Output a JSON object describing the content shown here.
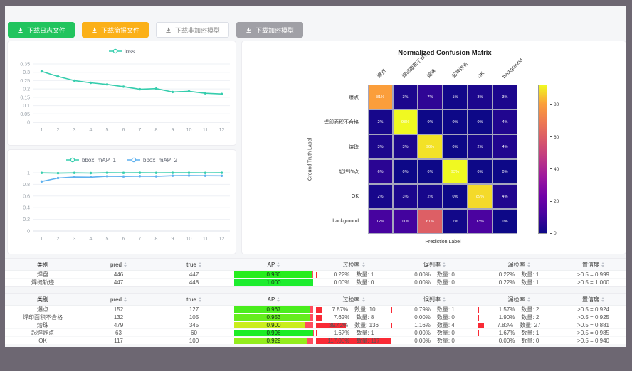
{
  "toolbar": {
    "buttons": [
      {
        "label": "下载日志文件",
        "color": "#21c45e"
      },
      {
        "label": "下载简报文件",
        "color": "#fbb018"
      },
      {
        "label": "下载非加密模型",
        "color": "#ffffff"
      },
      {
        "label": "下载加密模型",
        "color": "#a0a0a6"
      }
    ]
  },
  "chart_data": [
    {
      "type": "line",
      "title": "loss",
      "x": [
        1,
        2,
        3,
        4,
        5,
        6,
        7,
        8,
        9,
        10,
        11,
        12
      ],
      "xlabel": "",
      "ylabel": "",
      "ylim": [
        0,
        0.35
      ],
      "yticks": [
        0,
        0.05,
        0.1,
        0.15,
        0.2,
        0.25,
        0.3,
        0.35
      ],
      "grid": true,
      "legend_position": "top",
      "series": [
        {
          "name": "loss",
          "color": "#35cdad",
          "values": [
            0.305,
            0.275,
            0.25,
            0.237,
            0.227,
            0.214,
            0.198,
            0.202,
            0.182,
            0.186,
            0.174,
            0.17
          ]
        }
      ]
    },
    {
      "type": "line",
      "title": "bbox_mAP",
      "x": [
        1,
        2,
        3,
        4,
        5,
        6,
        7,
        8,
        9,
        10,
        11,
        12
      ],
      "xlabel": "",
      "ylabel": "",
      "ylim": [
        0,
        1
      ],
      "yticks": [
        0,
        0.2,
        0.4,
        0.6,
        0.8,
        1
      ],
      "grid": true,
      "legend_position": "top",
      "series": [
        {
          "name": "bbox_mAP_1",
          "color": "#35cdad",
          "values": [
            0.998,
            0.993,
            0.997,
            0.994,
            0.999,
            0.998,
            0.999,
            0.998,
            0.999,
            0.999,
            0.998,
            0.999
          ]
        },
        {
          "name": "bbox_mAP_2",
          "color": "#5eb1ef",
          "values": [
            0.85,
            0.908,
            0.925,
            0.923,
            0.94,
            0.936,
            0.941,
            0.938,
            0.949,
            0.951,
            0.949,
            0.948
          ]
        }
      ]
    },
    {
      "type": "heatmap",
      "title": "Normalized Confusion Matrix",
      "xlabel": "Prediction Label",
      "ylabel": "Ground Truth Label",
      "labels": [
        "爆点",
        "焊印面积不合格",
        "熔珠",
        "起焊炸点",
        "OK",
        "background"
      ],
      "matrix_percent": [
        [
          81,
          3,
          7,
          1,
          3,
          3
        ],
        [
          2,
          93,
          0,
          0,
          0,
          4
        ],
        [
          3,
          3,
          90,
          0,
          2,
          4
        ],
        [
          6,
          0,
          0,
          93,
          0,
          0
        ],
        [
          2,
          3,
          2,
          0,
          89,
          4
        ],
        [
          12,
          11,
          61,
          1,
          13,
          0
        ]
      ],
      "colormap": "plasma",
      "vmax": 93,
      "colorbar_ticks": [
        0,
        20,
        40,
        60,
        80
      ]
    }
  ],
  "tables": {
    "headers": [
      "类别",
      "pred",
      "true",
      "AP",
      "过检率",
      "误判率",
      "漏检率",
      "置信度"
    ],
    "sortable": [
      false,
      true,
      true,
      true,
      true,
      true,
      true,
      true
    ],
    "count_prefix": "数量: ",
    "groups": [
      {
        "rows": [
          {
            "cls": "焊盘",
            "pred": "446",
            "true": "447",
            "ap": 0.986,
            "ap_label": "0.986",
            "over": {
              "pct": 0.22,
              "label": "0.22%",
              "count": "1"
            },
            "mis": {
              "pct": 0,
              "label": "0.00%",
              "count": "0"
            },
            "miss": {
              "pct": 0.22,
              "label": "0.22%",
              "count": "1"
            },
            "conf": ">0.5 = 0.999"
          },
          {
            "cls": "焊缝轨迹",
            "pred": "447",
            "true": "448",
            "ap": 1.0,
            "ap_label": "1.000",
            "over": {
              "pct": 0,
              "label": "0.00%",
              "count": "0"
            },
            "mis": {
              "pct": 0,
              "label": "0.00%",
              "count": "0"
            },
            "miss": {
              "pct": 0.22,
              "label": "0.22%",
              "count": "1"
            },
            "conf": ">0.5 = 1.000"
          }
        ]
      },
      {
        "rows": [
          {
            "cls": "爆点",
            "pred": "152",
            "true": "127",
            "ap": 0.967,
            "ap_label": "0.967",
            "over": {
              "pct": 7.87,
              "label": "7.87%",
              "count": "10"
            },
            "mis": {
              "pct": 0.79,
              "label": "0.79%",
              "count": "1"
            },
            "miss": {
              "pct": 1.57,
              "label": "1.57%",
              "count": "2"
            },
            "conf": ">0.5 = 0.924"
          },
          {
            "cls": "焊印面积不合格",
            "pred": "132",
            "true": "105",
            "ap": 0.953,
            "ap_label": "0.953",
            "over": {
              "pct": 7.62,
              "label": "7.62%",
              "count": "8"
            },
            "mis": {
              "pct": 0,
              "label": "0.00%",
              "count": "0"
            },
            "miss": {
              "pct": 1.9,
              "label": "1.90%",
              "count": "2"
            },
            "conf": ">0.5 = 0.925"
          },
          {
            "cls": "熔珠",
            "pred": "479",
            "true": "345",
            "ap": 0.9,
            "ap_label": "0.900",
            "over": {
              "pct": 39.42,
              "label": "39.42%",
              "count": "136"
            },
            "mis": {
              "pct": 1.16,
              "label": "1.16%",
              "count": "4"
            },
            "miss": {
              "pct": 7.83,
              "label": "7.83%",
              "count": "27"
            },
            "conf": ">0.5 = 0.881"
          },
          {
            "cls": "起焊炸点",
            "pred": "63",
            "true": "60",
            "ap": 0.996,
            "ap_label": "0.996",
            "over": {
              "pct": 1.67,
              "label": "1.67%",
              "count": "1"
            },
            "mis": {
              "pct": 0,
              "label": "0.00%",
              "count": "0"
            },
            "miss": {
              "pct": 1.67,
              "label": "1.67%",
              "count": "1"
            },
            "conf": ">0.5 = 0.985"
          },
          {
            "cls": "OK",
            "pred": "117",
            "true": "100",
            "ap": 0.929,
            "ap_label": "0.929",
            "over": {
              "pct": 117,
              "label": "117.00%",
              "count": "117"
            },
            "mis": {
              "pct": 0,
              "label": "0.00%",
              "count": "0"
            },
            "miss": {
              "pct": 0,
              "label": "0.00%",
              "count": "0"
            },
            "conf": ">0.5 = 0.940"
          }
        ]
      }
    ]
  }
}
